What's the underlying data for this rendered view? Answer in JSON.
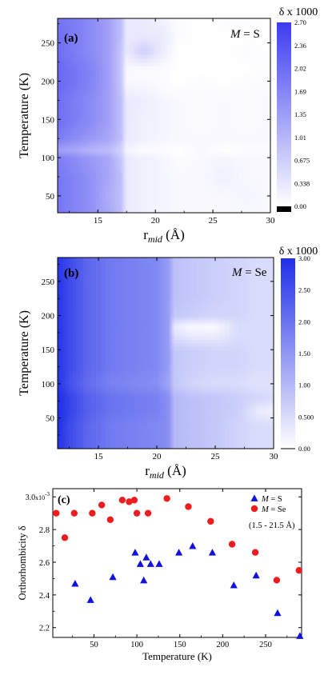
{
  "chart_data": [
    {
      "type": "heatmap",
      "panel_label": "(a)",
      "annotation": {
        "prefix": "M",
        "suffix": " = S"
      },
      "xlabel_main": "r",
      "xlabel_sub": "mid",
      "xlabel_unit": " (Å)",
      "ylabel": "Temperature (K)",
      "xlim": [
        11.5,
        30
      ],
      "ylim": [
        28,
        282
      ],
      "xticks": [
        "15",
        "20",
        "25",
        "30"
      ],
      "yticks": [
        "50",
        "100",
        "150",
        "200",
        "250"
      ],
      "colorbar": {
        "title": "δ x 1000",
        "min": 0,
        "max": 2.7,
        "ticks": [
          "0.00",
          "0.338",
          "0.675",
          "1.01",
          "1.35",
          "1.69",
          "2.02",
          "2.36",
          "2.70"
        ],
        "high_color": "#3c3cf0"
      },
      "x": [
        11.5,
        13,
        14.5,
        16,
        17,
        17.5,
        19,
        20.5,
        22,
        24,
        26,
        28,
        30
      ],
      "y": [
        28,
        50,
        75,
        100,
        110,
        125,
        150,
        175,
        200,
        215,
        240,
        260,
        282
      ],
      "values": [
        [
          1.9,
          1.7,
          1.5,
          1.2,
          0.9,
          0.3,
          0.2,
          0.15,
          0.1,
          0.1,
          0.1,
          0.1,
          0.1
        ],
        [
          1.9,
          1.7,
          1.5,
          1.1,
          0.9,
          0.3,
          0.2,
          0.15,
          0.1,
          0.1,
          0.1,
          0.15,
          0.1
        ],
        [
          1.9,
          1.7,
          1.5,
          1.2,
          0.9,
          0.3,
          0.2,
          0.15,
          0.1,
          0.1,
          0.2,
          0.1,
          0.1
        ],
        [
          1.8,
          1.6,
          1.4,
          1.2,
          0.8,
          0.3,
          0.2,
          0.15,
          0.05,
          0.1,
          0.15,
          0.1,
          0.1
        ],
        [
          1.3,
          1.2,
          1.0,
          0.9,
          0.6,
          0.15,
          0.05,
          0.05,
          0.0,
          0.1,
          0.0,
          0.05,
          0.05
        ],
        [
          1.8,
          1.6,
          1.4,
          1.2,
          0.9,
          0.3,
          0.2,
          0.15,
          0.1,
          0.1,
          0.1,
          0.1,
          0.1
        ],
        [
          2.0,
          1.8,
          1.6,
          1.3,
          0.9,
          0.3,
          0.2,
          0.15,
          0.1,
          0.05,
          0.1,
          0.05,
          0.1
        ],
        [
          2.0,
          1.8,
          1.6,
          1.3,
          0.9,
          0.3,
          0.25,
          0.15,
          0.1,
          0.05,
          0.1,
          0.05,
          0.1
        ],
        [
          2.1,
          1.9,
          1.7,
          1.3,
          0.8,
          0.1,
          0.1,
          0.05,
          0.0,
          0.05,
          0.0,
          0.05,
          0.05
        ],
        [
          2.1,
          1.9,
          1.7,
          1.3,
          0.8,
          0.1,
          0.05,
          0.05,
          0.0,
          0.0,
          0.0,
          0.0,
          0.05
        ],
        [
          2.0,
          1.8,
          1.6,
          1.3,
          0.8,
          0.3,
          0.7,
          0.3,
          0.0,
          0.0,
          0.0,
          0.05,
          0.0
        ],
        [
          2.0,
          1.8,
          1.6,
          1.3,
          0.9,
          0.3,
          0.3,
          0.3,
          0.05,
          0.0,
          0.0,
          0.0,
          0.0
        ],
        [
          1.9,
          1.8,
          1.6,
          1.3,
          0.9,
          0.3,
          0.3,
          0.2,
          0.05,
          0.0,
          0.05,
          0.05,
          0.0
        ]
      ]
    },
    {
      "type": "heatmap",
      "panel_label": "(b)",
      "annotation": {
        "prefix": "M",
        "suffix": " = Se"
      },
      "xlabel_main": "r",
      "xlabel_sub": "mid",
      "xlabel_unit": " (Å)",
      "ylabel": "Temperature (K)",
      "xlim": [
        11.5,
        30
      ],
      "ylim": [
        5,
        285
      ],
      "xticks": [
        "15",
        "20",
        "25",
        "30"
      ],
      "yticks": [
        "50",
        "100",
        "150",
        "200",
        "250"
      ],
      "colorbar": {
        "title": "δ x 1000",
        "min": 0,
        "max": 3.0,
        "ticks": [
          "0.00",
          "0.500",
          "1.00",
          "1.50",
          "2.00",
          "2.50",
          "3.00"
        ],
        "high_color": "#1f2ee8"
      },
      "x": [
        11.5,
        12.5,
        14,
        16,
        18,
        20,
        21,
        21.5,
        23,
        25,
        27,
        28.5,
        30
      ],
      "y": [
        5,
        40,
        60,
        80,
        100,
        125,
        150,
        175,
        185,
        200,
        230,
        260,
        285
      ],
      "values": [
        [
          2.9,
          2.6,
          2.2,
          1.9,
          1.8,
          1.7,
          1.6,
          1.0,
          0.9,
          0.8,
          0.6,
          0.5,
          0.5
        ],
        [
          3.0,
          2.6,
          2.2,
          1.9,
          1.8,
          1.7,
          1.6,
          1.0,
          0.9,
          0.8,
          0.6,
          0.5,
          0.5
        ],
        [
          3.0,
          2.7,
          2.3,
          2.0,
          1.9,
          1.8,
          1.6,
          1.0,
          0.9,
          0.8,
          0.7,
          0.3,
          0.2
        ],
        [
          3.0,
          2.7,
          2.3,
          2.0,
          1.9,
          1.8,
          1.6,
          1.0,
          0.9,
          0.8,
          0.7,
          0.6,
          0.5
        ],
        [
          2.9,
          2.5,
          2.1,
          1.8,
          1.7,
          1.6,
          1.3,
          0.8,
          0.6,
          0.5,
          0.5,
          0.4,
          0.4
        ],
        [
          2.9,
          2.6,
          2.2,
          1.9,
          1.8,
          1.7,
          1.4,
          0.8,
          0.7,
          0.6,
          0.6,
          0.5,
          0.5
        ],
        [
          2.9,
          2.6,
          2.2,
          1.9,
          1.8,
          1.7,
          1.4,
          0.8,
          0.7,
          0.6,
          0.6,
          0.5,
          0.5
        ],
        [
          2.9,
          2.6,
          2.2,
          1.9,
          1.8,
          1.7,
          1.4,
          0.4,
          0.2,
          0.2,
          0.5,
          0.5,
          0.5
        ],
        [
          2.9,
          2.6,
          2.2,
          1.9,
          1.8,
          1.7,
          1.4,
          0.3,
          0.1,
          0.1,
          0.5,
          0.5,
          0.5
        ],
        [
          2.9,
          2.6,
          2.2,
          1.9,
          1.8,
          1.7,
          1.4,
          0.8,
          0.7,
          0.6,
          0.6,
          0.5,
          0.5
        ],
        [
          2.9,
          2.6,
          2.2,
          1.9,
          1.8,
          1.7,
          1.4,
          0.9,
          0.8,
          0.7,
          0.6,
          0.5,
          0.5
        ],
        [
          2.9,
          2.6,
          2.2,
          1.9,
          1.8,
          1.7,
          1.4,
          0.9,
          0.8,
          0.7,
          0.6,
          0.5,
          0.5
        ],
        [
          2.9,
          2.6,
          2.2,
          1.9,
          1.8,
          1.7,
          1.4,
          0.9,
          0.8,
          0.7,
          0.6,
          0.5,
          0.5
        ]
      ]
    },
    {
      "type": "scatter",
      "panel_label": "(c)",
      "xlabel": "Temperature (K)",
      "ylabel": "Orthorhombicity δ",
      "xlim": [
        2,
        292
      ],
      "ylim": [
        2.14,
        3.05
      ],
      "xticks": [
        50,
        100,
        150,
        200,
        250
      ],
      "yticks": [
        2.2,
        2.4,
        2.6,
        2.8,
        3.0
      ],
      "ytick_labels": [
        "2.2",
        "2.4",
        "2.6",
        "2.8",
        "3.0"
      ],
      "ytick_multiplier": "x10",
      "ytick_exponent": "-3",
      "range_note": "(1.5 - 21.5 Å)",
      "legend_position": "top-right",
      "series": [
        {
          "name_prefix": "M",
          "name_suffix": " = S",
          "marker": "triangle",
          "color": "#1212e0",
          "points": [
            [
              28,
              2.47
            ],
            [
              46,
              2.37
            ],
            [
              72,
              2.51
            ],
            [
              98,
              2.66
            ],
            [
              104,
              2.59
            ],
            [
              108,
              2.49
            ],
            [
              111,
              2.63
            ],
            [
              116,
              2.59
            ],
            [
              126,
              2.59
            ],
            [
              149,
              2.66
            ],
            [
              165,
              2.7
            ],
            [
              188,
              2.66
            ],
            [
              213,
              2.46
            ],
            [
              239,
              2.52
            ],
            [
              264,
              2.29
            ],
            [
              290,
              2.15
            ]
          ]
        },
        {
          "name_prefix": "M",
          "name_suffix": " = Se",
          "marker": "circle",
          "color": "#ee1c1c",
          "points": [
            [
              6,
              2.9
            ],
            [
              16,
              2.75
            ],
            [
              27,
              2.9
            ],
            [
              48,
              2.9
            ],
            [
              59,
              2.95
            ],
            [
              69,
              2.86
            ],
            [
              83,
              2.98
            ],
            [
              91,
              2.97
            ],
            [
              97,
              2.98
            ],
            [
              100,
              2.9
            ],
            [
              113,
              2.9
            ],
            [
              135,
              2.99
            ],
            [
              160,
              2.94
            ],
            [
              186,
              2.85
            ],
            [
              211,
              2.71
            ],
            [
              238,
              2.66
            ],
            [
              263,
              2.49
            ],
            [
              289,
              2.55
            ]
          ]
        }
      ]
    }
  ]
}
